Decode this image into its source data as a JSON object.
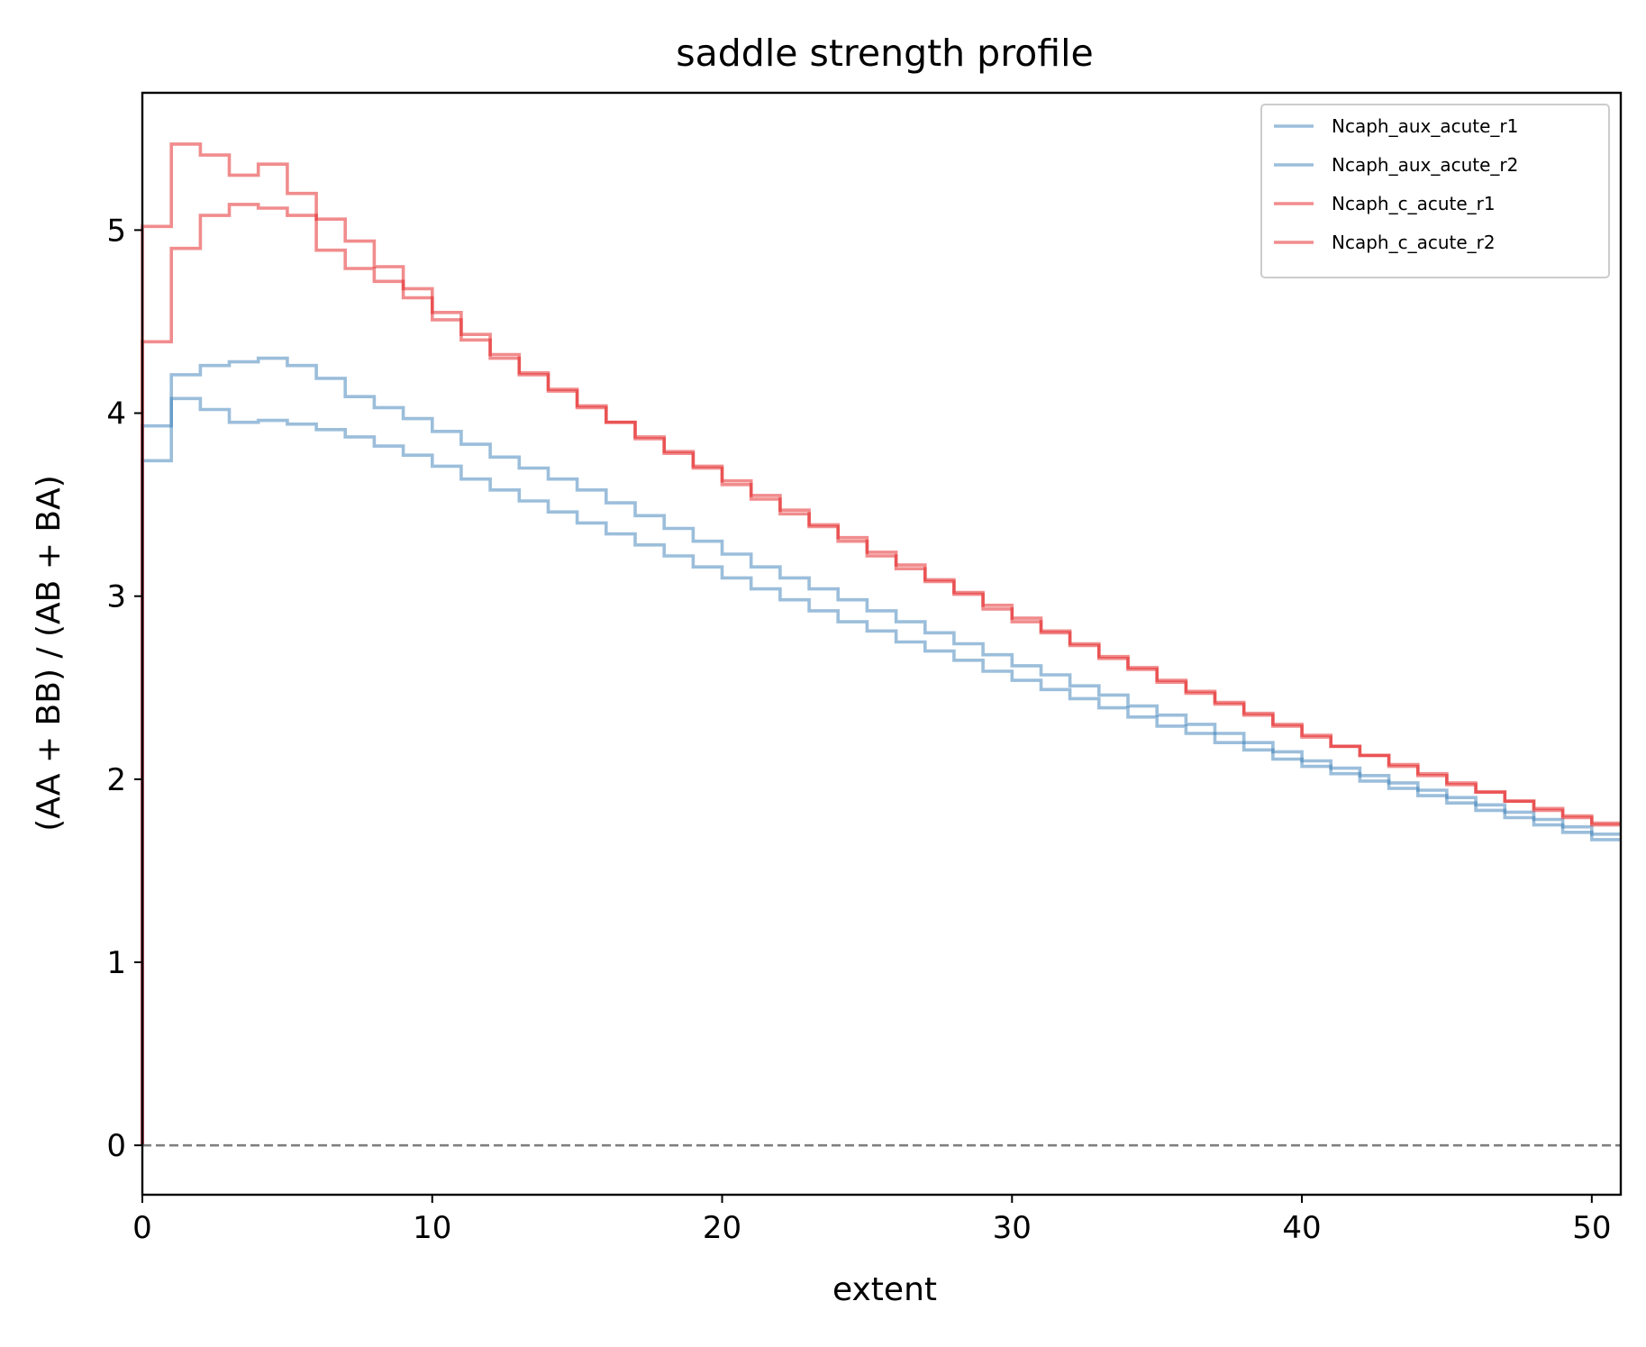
{
  "chart_data": {
    "type": "line",
    "drawstyle": "steps",
    "title": "saddle strength profile",
    "xlabel": "extent",
    "ylabel": "(AA + BB) / (AB + BA)",
    "xlim": [
      0,
      51
    ],
    "ylim": [
      -0.27,
      5.75
    ],
    "xticks": [
      0,
      10,
      20,
      30,
      40,
      50
    ],
    "yticks": [
      0,
      1,
      2,
      3,
      4,
      5
    ],
    "grid": false,
    "legend_position": "top-right",
    "reference_line": {
      "y": 0,
      "style": "dashed",
      "color": "#808080"
    },
    "series": [
      {
        "name": "Ncaph_aux_acute_r1",
        "color": "#377eb8",
        "values": [
          0,
          3.93,
          4.21,
          4.26,
          4.28,
          4.3,
          4.26,
          4.19,
          4.09,
          4.03,
          3.97,
          3.9,
          3.83,
          3.76,
          3.7,
          3.64,
          3.58,
          3.51,
          3.44,
          3.37,
          3.3,
          3.23,
          3.16,
          3.1,
          3.04,
          2.98,
          2.92,
          2.86,
          2.8,
          2.74,
          2.68,
          2.62,
          2.57,
          2.51,
          2.46,
          2.4,
          2.35,
          2.3,
          2.25,
          2.2,
          2.15,
          2.1,
          2.06,
          2.02,
          1.98,
          1.94,
          1.9,
          1.86,
          1.82,
          1.78,
          1.74,
          1.7
        ]
      },
      {
        "name": "Ncaph_aux_acute_r2",
        "color": "#377eb8",
        "values": [
          0,
          3.74,
          4.08,
          4.02,
          3.95,
          3.96,
          3.94,
          3.91,
          3.87,
          3.82,
          3.77,
          3.71,
          3.64,
          3.58,
          3.52,
          3.46,
          3.4,
          3.34,
          3.28,
          3.22,
          3.16,
          3.1,
          3.04,
          2.98,
          2.92,
          2.86,
          2.81,
          2.75,
          2.7,
          2.65,
          2.59,
          2.54,
          2.49,
          2.44,
          2.39,
          2.34,
          2.29,
          2.25,
          2.2,
          2.16,
          2.11,
          2.07,
          2.03,
          1.99,
          1.95,
          1.91,
          1.87,
          1.83,
          1.79,
          1.75,
          1.71,
          1.67
        ]
      },
      {
        "name": "Ncaph_c_acute_r1",
        "color": "#e41a1c",
        "values": [
          0,
          4.39,
          4.9,
          5.08,
          5.14,
          5.12,
          5.08,
          5.06,
          4.94,
          4.8,
          4.68,
          4.55,
          4.43,
          4.32,
          4.22,
          4.13,
          4.04,
          3.95,
          3.87,
          3.79,
          3.71,
          3.63,
          3.55,
          3.47,
          3.39,
          3.32,
          3.24,
          3.17,
          3.09,
          3.02,
          2.95,
          2.88,
          2.81,
          2.74,
          2.67,
          2.61,
          2.54,
          2.48,
          2.42,
          2.36,
          2.3,
          2.24,
          2.18,
          2.13,
          2.08,
          2.03,
          1.98,
          1.93,
          1.88,
          1.84,
          1.8,
          1.76
        ]
      },
      {
        "name": "Ncaph_c_acute_r2",
        "color": "#e41a1c",
        "values": [
          0,
          5.02,
          5.47,
          5.41,
          5.3,
          5.36,
          5.2,
          4.89,
          4.79,
          4.72,
          4.63,
          4.51,
          4.4,
          4.3,
          4.21,
          4.12,
          4.03,
          3.95,
          3.86,
          3.78,
          3.7,
          3.61,
          3.53,
          3.45,
          3.38,
          3.3,
          3.22,
          3.15,
          3.08,
          3.01,
          2.93,
          2.86,
          2.8,
          2.73,
          2.66,
          2.6,
          2.53,
          2.47,
          2.41,
          2.35,
          2.29,
          2.23,
          2.18,
          2.13,
          2.07,
          2.02,
          1.97,
          1.93,
          1.88,
          1.83,
          1.79,
          1.75
        ]
      }
    ]
  }
}
